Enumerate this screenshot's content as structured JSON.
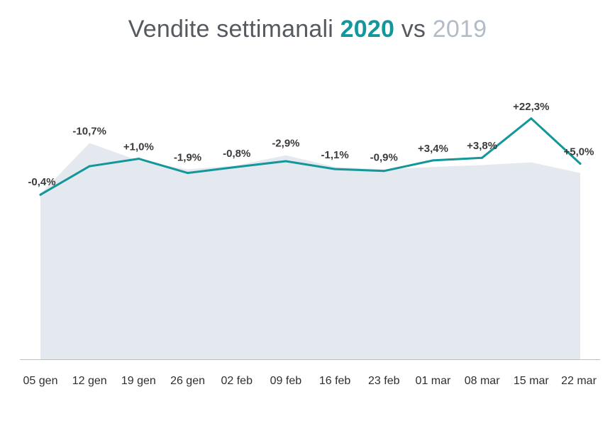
{
  "title": {
    "prefix": "Vendite settimanali",
    "year_current": "2020",
    "connector": "vs",
    "year_previous": "2019"
  },
  "colors": {
    "line_2020": "#13979a",
    "area_2019": "#e4e8ef",
    "title_text": "#555a60",
    "year_2019_text": "#b2bcc6",
    "axis": "#bfbfbf"
  },
  "chart_data": {
    "type": "line",
    "title": "Vendite settimanali 2020 vs 2019",
    "categories": [
      "05 gen",
      "12 gen",
      "19 gen",
      "26 gen",
      "02 feb",
      "09 feb",
      "16 feb",
      "23 feb",
      "01 mar",
      "08 mar",
      "15 mar",
      "22 mar"
    ],
    "series": [
      {
        "name": "2020",
        "style": "line",
        "values": [
          100.8,
          118.2,
          122.8,
          114.1,
          117.8,
          121.3,
          116.5,
          115.3,
          121.8,
          123.4,
          147.5,
          119.8
        ]
      },
      {
        "name": "2019",
        "style": "area",
        "values": [
          101.2,
          132.4,
          121.6,
          116.3,
          118.7,
          124.9,
          117.8,
          116.3,
          117.8,
          118.9,
          120.6,
          114.1
        ]
      }
    ],
    "data_labels": [
      "-0,4%",
      "-10,7%",
      "+1,0%",
      "-1,9%",
      "-0,8%",
      "-2,9%",
      "-1,1%",
      "-0,9%",
      "+3,4%",
      "+3,8%",
      "+22,3%",
      "+5,0%"
    ],
    "ylim": [
      0,
      170
    ],
    "grid": false,
    "legend": "none"
  }
}
